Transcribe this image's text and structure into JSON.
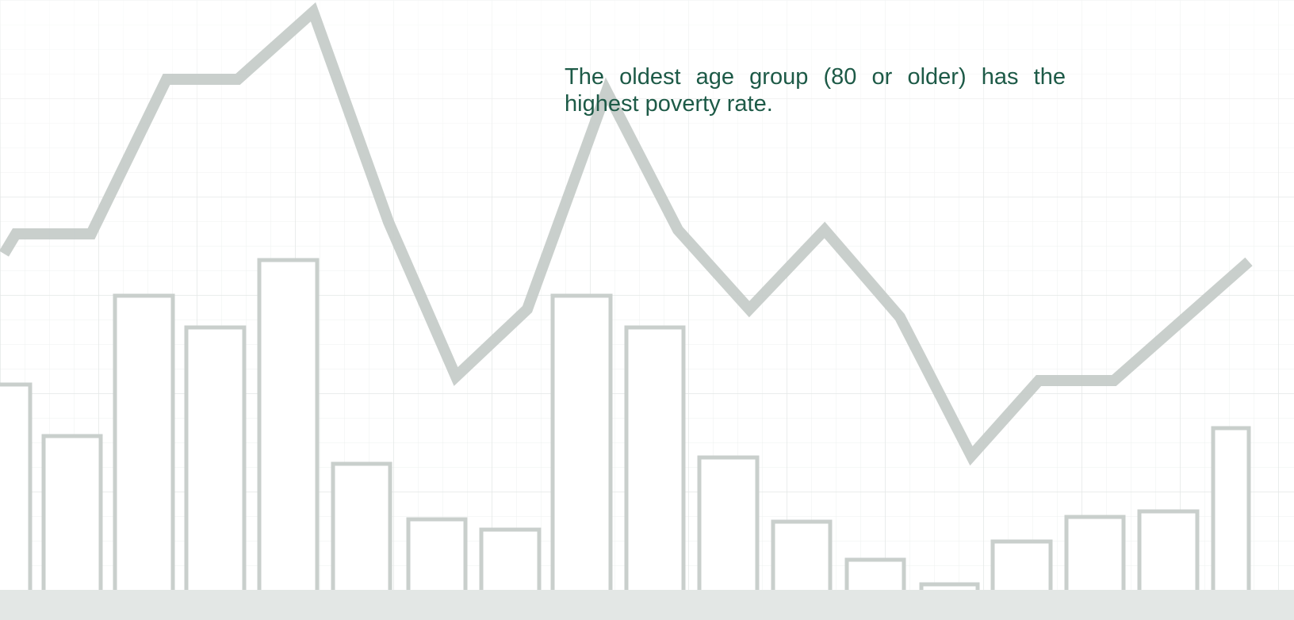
{
  "body": {
    "paragraph": "The oldest age group (80 or older) has the highest poverty rate."
  }
}
